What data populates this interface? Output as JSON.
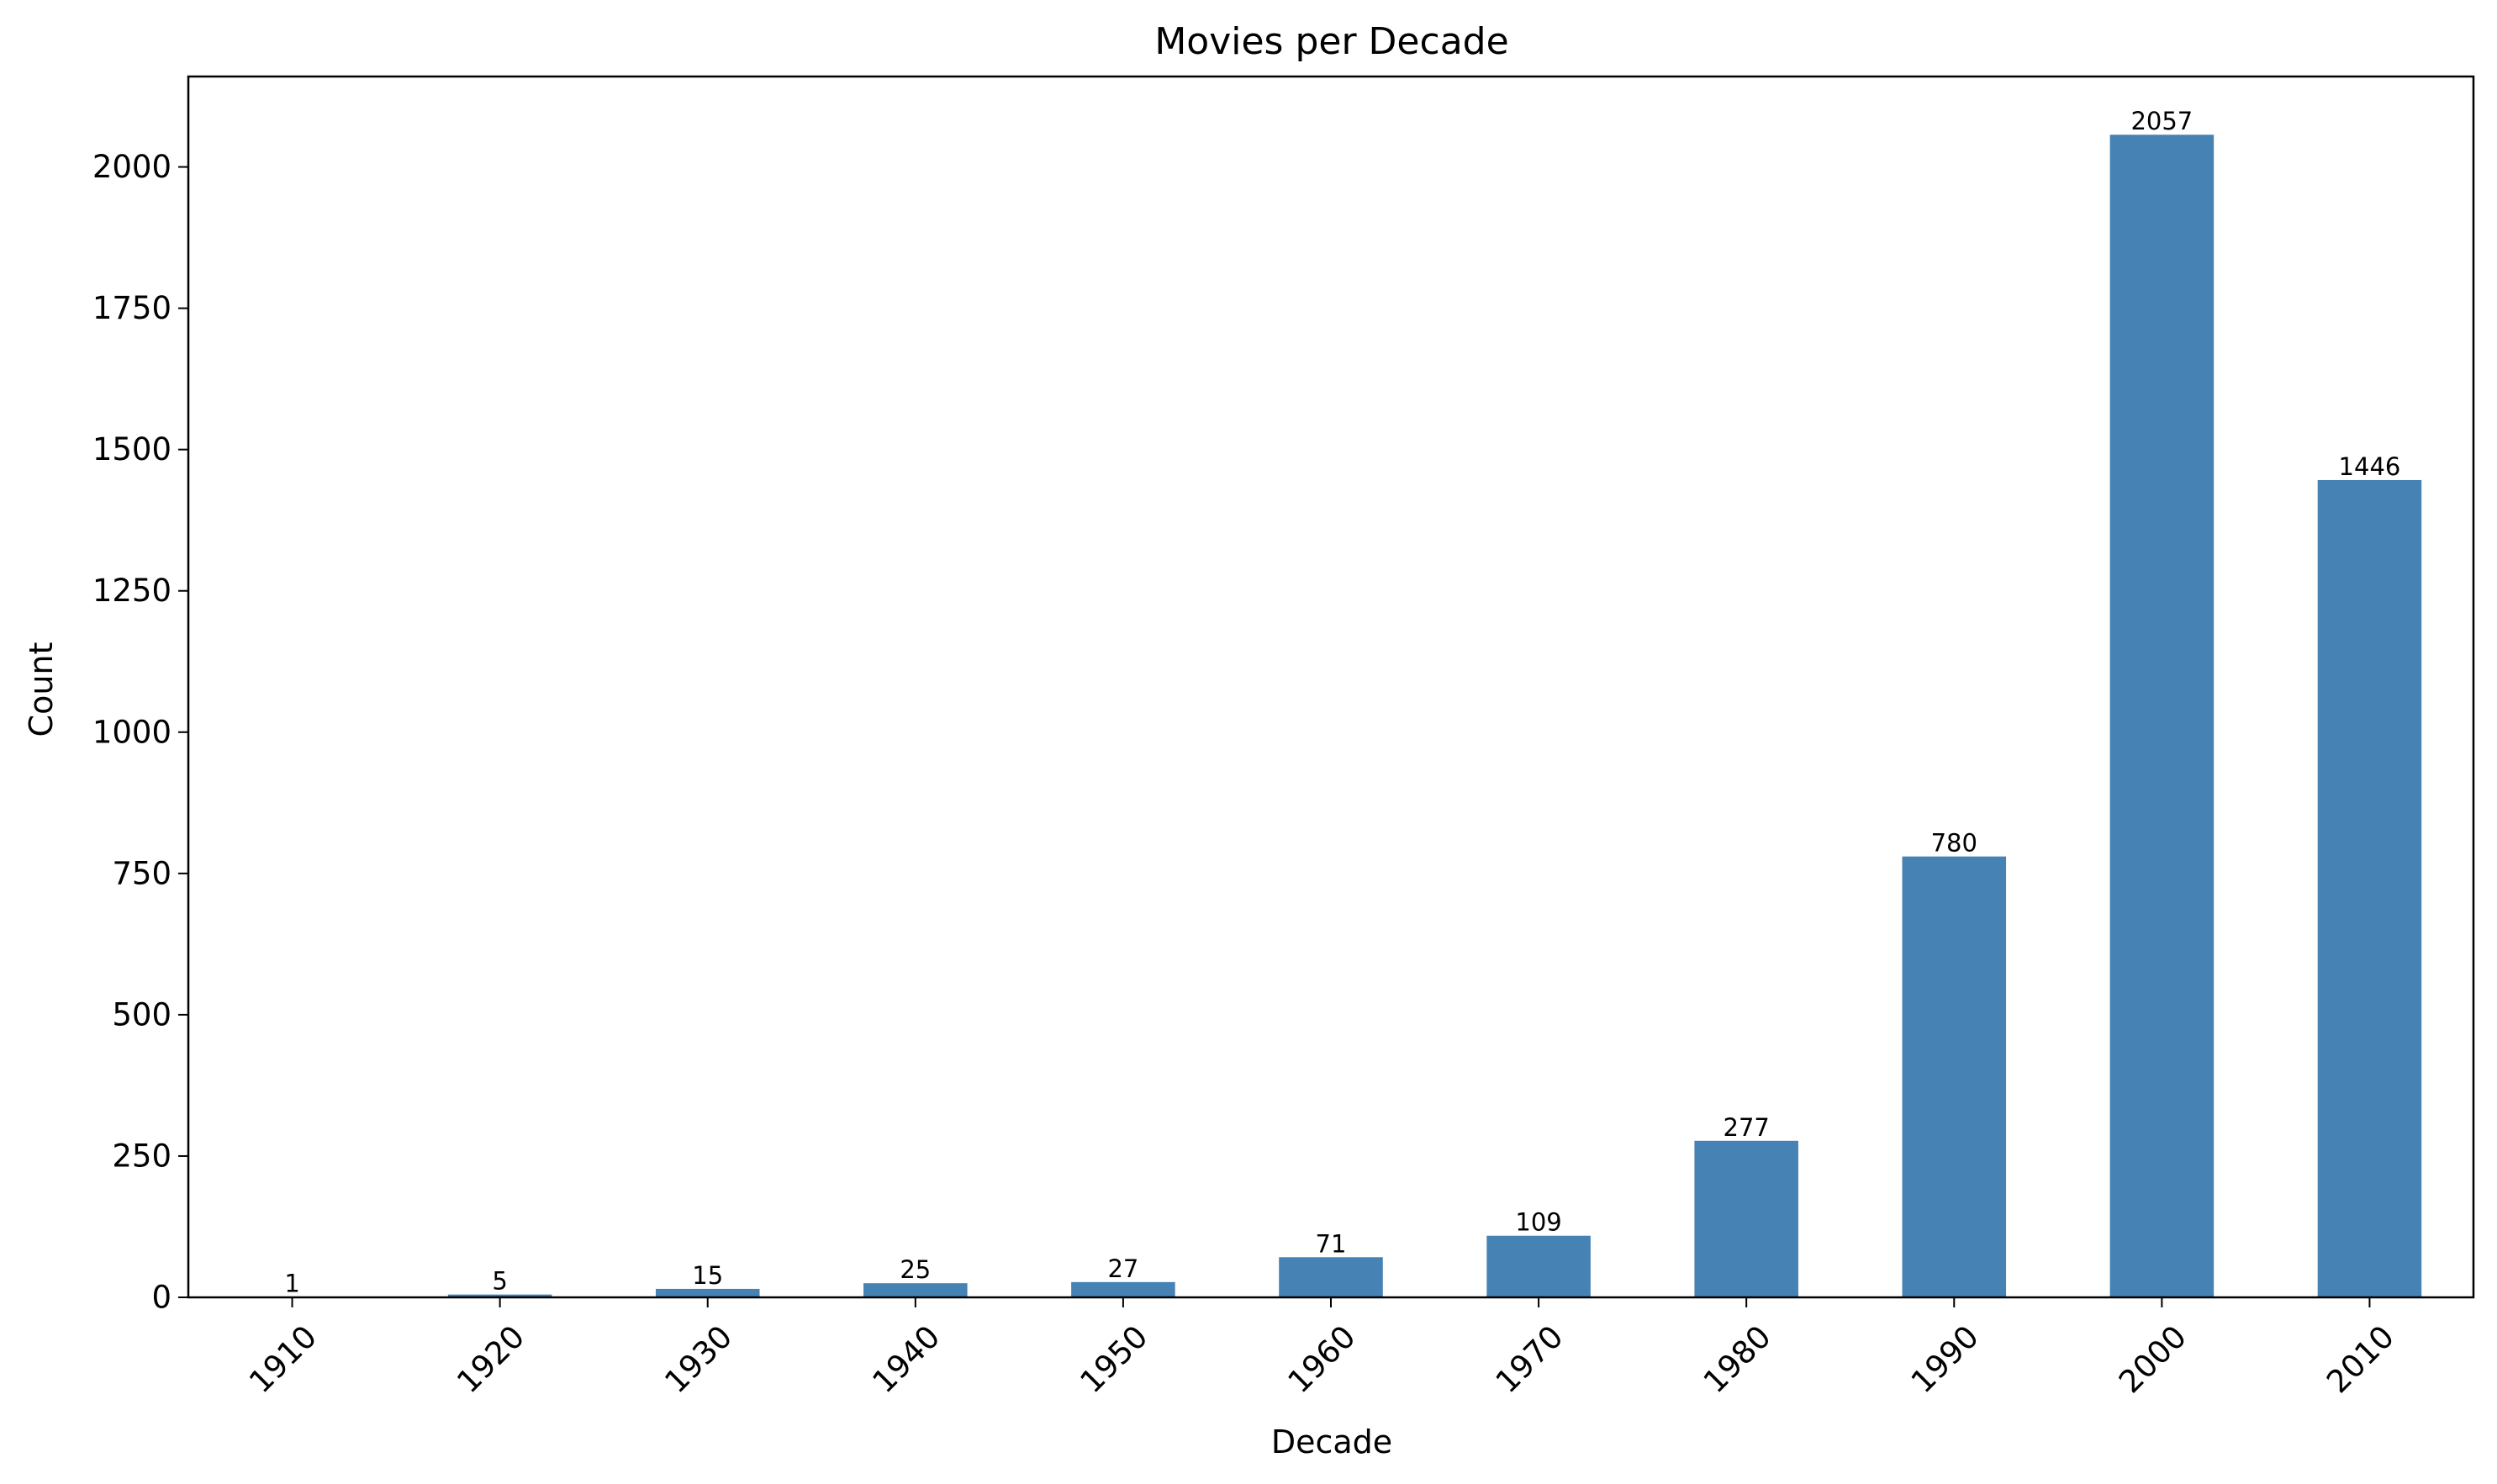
{
  "chart_data": {
    "type": "bar",
    "title": "Movies per Decade",
    "xlabel": "Decade",
    "ylabel": "Count",
    "categories": [
      "1910",
      "1920",
      "1930",
      "1940",
      "1950",
      "1960",
      "1970",
      "1980",
      "1990",
      "2000",
      "2010"
    ],
    "values": [
      1,
      5,
      15,
      25,
      27,
      71,
      109,
      277,
      780,
      2057,
      1446
    ],
    "data_labels": [
      "1",
      "5",
      "15",
      "25",
      "27",
      "71",
      "109",
      "277",
      "780",
      "2057",
      "1446"
    ],
    "ylim": [
      0,
      2160
    ],
    "yticks": [
      0,
      250,
      500,
      750,
      1000,
      1250,
      1500,
      1750,
      2000
    ],
    "ytick_labels": [
      "0",
      "250",
      "500",
      "750",
      "1000",
      "1250",
      "1500",
      "1750",
      "2000"
    ],
    "bar_color": "#4682b4",
    "grid": false,
    "legend": "none"
  }
}
